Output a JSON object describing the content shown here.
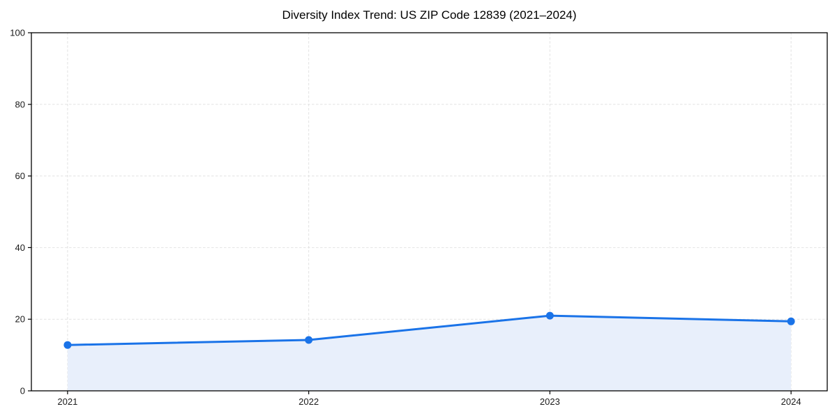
{
  "chart_data": {
    "type": "area",
    "title": "Diversity Index Trend: US ZIP Code 12839 (2021–2024)",
    "x": [
      2021,
      2022,
      2023,
      2024
    ],
    "values": [
      12.8,
      14.2,
      21.0,
      19.4
    ],
    "xticks": [
      "2021",
      "2022",
      "2023",
      "2024"
    ],
    "yticks": [
      0,
      20,
      40,
      60,
      80,
      100
    ],
    "xlim": [
      2020.85,
      2024.15
    ],
    "ylim": [
      0,
      100
    ],
    "xlabel": "",
    "ylabel": "",
    "grid": true,
    "grid_style": "dashed",
    "legend": false,
    "marker": "circle",
    "colors": {
      "line": "#1a73e8",
      "marker": "#1a73e8",
      "fill": "#e8effb",
      "grid": "#e2e2e2",
      "spine": "#000000",
      "tick_label": "#1a1a1a",
      "title": "#000000",
      "background": "#ffffff"
    }
  }
}
